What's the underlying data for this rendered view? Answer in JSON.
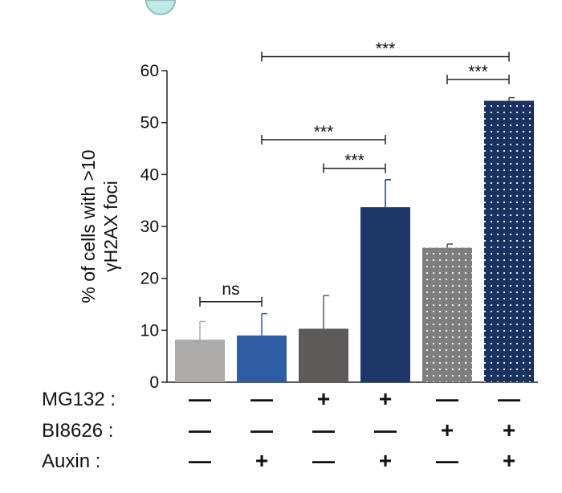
{
  "chart_data": {
    "type": "bar",
    "ylabel_lines": [
      "% of cells with >10",
      "γH2AX foci"
    ],
    "ylim": [
      0,
      60
    ],
    "yticks": [
      "0",
      "10",
      "20",
      "30",
      "40",
      "50",
      "60"
    ],
    "grid": false,
    "bars": [
      {
        "value": 8.2,
        "error": 3.5,
        "color": "#adabaa",
        "pattern": "none"
      },
      {
        "value": 9.0,
        "error": 4.2,
        "color": "#2f5da3",
        "pattern": "none"
      },
      {
        "value": 10.3,
        "error": 6.4,
        "color": "#5f5a5a",
        "pattern": "none"
      },
      {
        "value": 33.7,
        "error": 5.3,
        "color": "#1d3868",
        "pattern": "none"
      },
      {
        "value": 25.9,
        "error": 0.7,
        "color": "#7e7e7e",
        "pattern": "dots"
      },
      {
        "value": 54.2,
        "error": 0.6,
        "color": "#19325f",
        "pattern": "dots"
      }
    ],
    "significance": [
      {
        "from": 0,
        "to": 1,
        "label": "ns",
        "y": 15.5
      },
      {
        "from": 2,
        "to": 3,
        "label": "***",
        "y": 41.2
      },
      {
        "from": 1,
        "to": 3,
        "label": "***",
        "y": 46.7
      },
      {
        "from": 4,
        "to": 5,
        "label": "***",
        "y": 58.3
      },
      {
        "from": 1,
        "to": 5,
        "label": "***",
        "y": 62.7
      }
    ],
    "treatments": [
      {
        "label": "MG132 :",
        "marks": [
          "—",
          "—",
          "+",
          "+",
          "—",
          "—"
        ]
      },
      {
        "label": "BI8626 :",
        "marks": [
          "—",
          "—",
          "—",
          "—",
          "+",
          "+"
        ]
      },
      {
        "label": "Auxin  :",
        "marks": [
          "—",
          "+",
          "—",
          "+",
          "—",
          "+"
        ]
      }
    ]
  }
}
